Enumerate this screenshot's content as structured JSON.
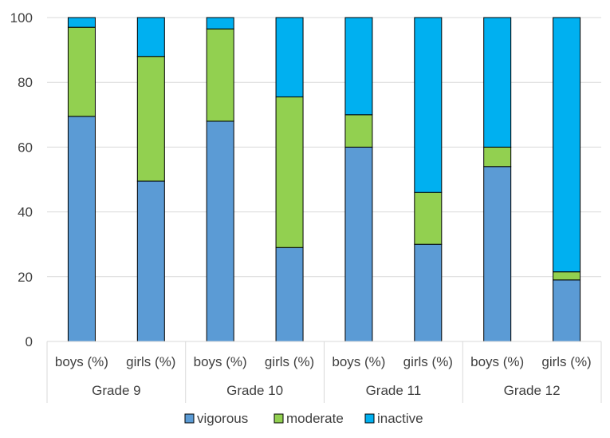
{
  "chart_data": {
    "type": "bar",
    "stacked": true,
    "title": "",
    "xlabel": "",
    "ylabel": "",
    "ylim": [
      0,
      100
    ],
    "yticks": [
      0,
      20,
      40,
      60,
      80,
      100
    ],
    "grid": true,
    "legend_position": "bottom",
    "groups": [
      "Grade 9",
      "Grade 10",
      "Grade 11",
      "Grade 12"
    ],
    "categories": [
      "boys (%)",
      "girls (%)",
      "boys (%)",
      "girls (%)",
      "boys (%)",
      "girls (%)",
      "boys (%)",
      "girls (%)"
    ],
    "series": [
      {
        "name": "vigorous",
        "color": "#5B9BD5",
        "values": [
          69.5,
          49.5,
          68,
          29,
          60,
          30,
          54,
          19
        ]
      },
      {
        "name": "moderate",
        "color": "#92D050",
        "values": [
          27.5,
          38.5,
          28.5,
          46.5,
          10,
          16,
          6,
          2.5
        ]
      },
      {
        "name": "inactive",
        "color": "#00B0F0",
        "values": [
          3,
          12,
          3.5,
          24.5,
          30,
          54,
          40,
          78.5
        ]
      }
    ]
  }
}
